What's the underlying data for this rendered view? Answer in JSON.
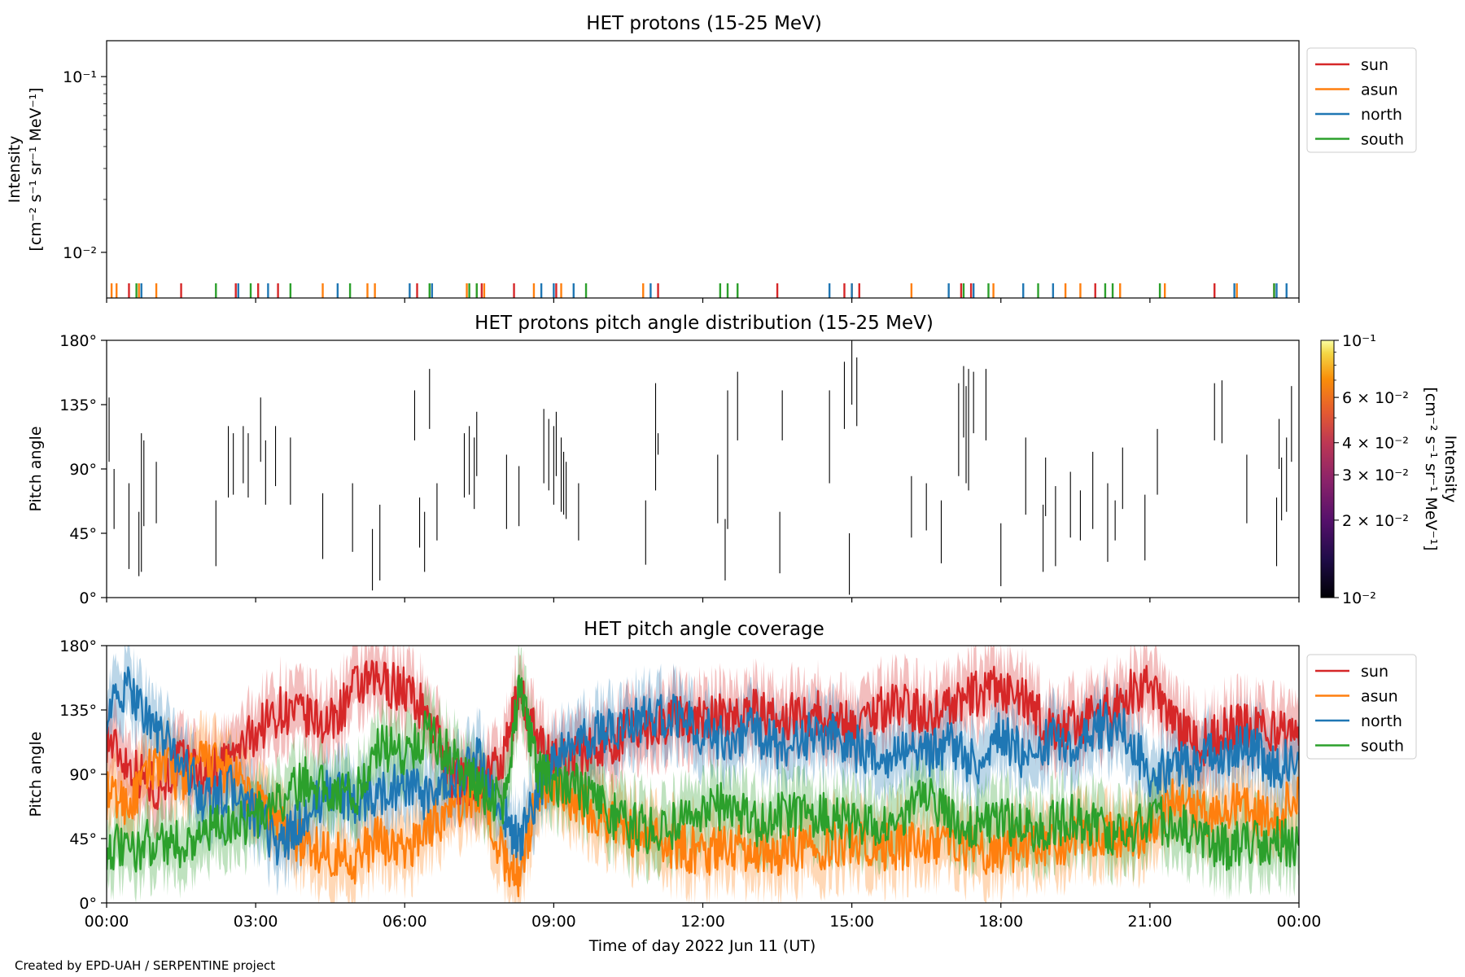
{
  "footer": "Created by EPD-UAH / SERPENTINE project",
  "xaxis": {
    "label": "Time of day 2022 Jun 11 (UT)",
    "ticks": [
      "00:00",
      "03:00",
      "06:00",
      "09:00",
      "12:00",
      "15:00",
      "18:00",
      "21:00",
      "00:00"
    ],
    "range_hours": [
      0,
      24
    ]
  },
  "colors": {
    "sun": "#d62728",
    "asun": "#ff7f0e",
    "north": "#1f77b4",
    "south": "#2ca02c"
  },
  "chart_data": [
    {
      "type": "line",
      "title": "HET protons (15-25 MeV)",
      "ylabel": [
        "Intensity",
        "[cm⁻² s⁻¹ sr⁻¹ MeV⁻¹]"
      ],
      "yscale": "log",
      "ylim": [
        0.0055,
        0.16
      ],
      "yticks": [
        "10⁻¹",
        "10⁻²"
      ],
      "legend": [
        "sun",
        "asun",
        "north",
        "south"
      ],
      "legend_position": "outside-right",
      "series": [
        {
          "name": "sun",
          "spikes_hours": [
            0.45,
            1.5,
            2.6,
            3.05,
            3.45,
            6.25,
            7.55,
            8.2,
            9.05,
            11.1,
            13.5,
            14.85,
            15.15,
            17.2,
            17.4,
            19.9,
            22.3,
            23.5
          ]
        },
        {
          "name": "asun",
          "spikes_hours": [
            0.1,
            0.2,
            0.65,
            1.0,
            4.35,
            5.25,
            5.4,
            6.55,
            7.25,
            7.45,
            7.6,
            8.6,
            9.15,
            10.8,
            15.0,
            16.2,
            17.85,
            19.3,
            19.6,
            20.4,
            21.3,
            22.75
          ]
        },
        {
          "name": "north",
          "spikes_hours": [
            0.7,
            2.65,
            3.25,
            4.65,
            6.1,
            6.55,
            8.75,
            9.0,
            9.4,
            10.95,
            14.55,
            15.0,
            16.95,
            17.45,
            18.45,
            19.05,
            22.7,
            23.55,
            23.75
          ]
        },
        {
          "name": "south",
          "spikes_hours": [
            0.6,
            2.2,
            2.9,
            3.7,
            4.9,
            6.5,
            7.3,
            7.45,
            9.65,
            12.35,
            12.5,
            12.7,
            17.25,
            17.75,
            18.75,
            20.1,
            20.25,
            21.2,
            23.5
          ]
        }
      ]
    },
    {
      "type": "heatmap",
      "title": "HET protons pitch angle distribution (15-25 MeV)",
      "ylabel": "Pitch angle",
      "ylim": [
        0,
        180
      ],
      "yticks": [
        "180°",
        "135°",
        "90°",
        "45°",
        "0°"
      ],
      "colorbar": {
        "label": [
          "Intensity",
          "[cm⁻² s⁻¹ sr⁻¹ MeV⁻¹]"
        ],
        "scale": "log",
        "range": [
          0.01,
          0.1
        ],
        "ticks": [
          "10⁻¹",
          "6 × 10⁻²",
          "4 × 10⁻²",
          "3 × 10⁻²",
          "2 × 10⁻²",
          "10⁻²"
        ],
        "tick_values": [
          0.1,
          0.06,
          0.04,
          0.03,
          0.02,
          0.01
        ]
      },
      "segments": [
        [
          0.05,
          95,
          140
        ],
        [
          0.15,
          48,
          90
        ],
        [
          0.45,
          20,
          80
        ],
        [
          0.65,
          15,
          60
        ],
        [
          0.7,
          18,
          115
        ],
        [
          0.75,
          50,
          110
        ],
        [
          1.0,
          52,
          95
        ],
        [
          2.2,
          22,
          68
        ],
        [
          2.45,
          70,
          120
        ],
        [
          2.55,
          72,
          115
        ],
        [
          2.75,
          80,
          120
        ],
        [
          2.85,
          70,
          115
        ],
        [
          3.1,
          95,
          140
        ],
        [
          3.2,
          65,
          110
        ],
        [
          3.4,
          78,
          120
        ],
        [
          3.7,
          65,
          112
        ],
        [
          4.35,
          27,
          73
        ],
        [
          4.95,
          32,
          80
        ],
        [
          5.35,
          5,
          48
        ],
        [
          5.5,
          12,
          65
        ],
        [
          6.2,
          110,
          145
        ],
        [
          6.3,
          35,
          70
        ],
        [
          6.4,
          18,
          60
        ],
        [
          6.5,
          118,
          160
        ],
        [
          6.65,
          40,
          80
        ],
        [
          7.2,
          70,
          115
        ],
        [
          7.3,
          72,
          120
        ],
        [
          7.4,
          62,
          112
        ],
        [
          7.45,
          85,
          130
        ],
        [
          8.05,
          48,
          100
        ],
        [
          8.3,
          50,
          92
        ],
        [
          8.8,
          80,
          132
        ],
        [
          8.9,
          75,
          125
        ],
        [
          9.0,
          65,
          120
        ],
        [
          9.05,
          85,
          130
        ],
        [
          9.15,
          60,
          112
        ],
        [
          9.2,
          58,
          102
        ],
        [
          9.25,
          55,
          95
        ],
        [
          9.5,
          40,
          80
        ],
        [
          10.85,
          23,
          68
        ],
        [
          11.05,
          75,
          150
        ],
        [
          11.1,
          100,
          115
        ],
        [
          12.3,
          52,
          100
        ],
        [
          12.5,
          48,
          145
        ],
        [
          12.45,
          12,
          55
        ],
        [
          12.7,
          110,
          158
        ],
        [
          13.55,
          17,
          60
        ],
        [
          13.6,
          110,
          145
        ],
        [
          14.55,
          80,
          145
        ],
        [
          14.85,
          118,
          165
        ],
        [
          14.95,
          2,
          45
        ],
        [
          15.0,
          135,
          180
        ],
        [
          15.1,
          120,
          168
        ],
        [
          16.2,
          42,
          85
        ],
        [
          16.5,
          47,
          80
        ],
        [
          16.8,
          24,
          68
        ],
        [
          17.15,
          85,
          150
        ],
        [
          17.25,
          112,
          162
        ],
        [
          17.3,
          80,
          148
        ],
        [
          17.35,
          75,
          160
        ],
        [
          17.45,
          115,
          158
        ],
        [
          17.7,
          110,
          160
        ],
        [
          18.0,
          8,
          52
        ],
        [
          18.5,
          58,
          112
        ],
        [
          18.85,
          18,
          65
        ],
        [
          18.9,
          57,
          98
        ],
        [
          19.1,
          22,
          78
        ],
        [
          19.4,
          42,
          88
        ],
        [
          19.6,
          40,
          75
        ],
        [
          19.85,
          48,
          102
        ],
        [
          20.15,
          25,
          80
        ],
        [
          20.3,
          40,
          68
        ],
        [
          20.45,
          62,
          105
        ],
        [
          20.9,
          26,
          72
        ],
        [
          21.15,
          72,
          118
        ],
        [
          22.3,
          110,
          150
        ],
        [
          22.45,
          108,
          152
        ],
        [
          22.95,
          52,
          100
        ],
        [
          23.55,
          22,
          70
        ],
        [
          23.65,
          54,
          98
        ],
        [
          23.6,
          90,
          125
        ],
        [
          23.75,
          60,
          112
        ],
        [
          23.85,
          95,
          148
        ]
      ]
    },
    {
      "type": "line",
      "title": "HET pitch angle coverage",
      "ylabel": "Pitch angle",
      "ylim": [
        0,
        180
      ],
      "yticks": [
        "180°",
        "135°",
        "90°",
        "45°",
        "0°"
      ],
      "legend": [
        "sun",
        "asun",
        "north",
        "south"
      ],
      "legend_position": "outside-right",
      "band_width_deg": 22,
      "series": [
        {
          "name": "sun",
          "x": [
            0,
            0.5,
            1,
            1.5,
            2,
            2.5,
            3,
            3.5,
            4,
            4.5,
            5,
            5.5,
            6,
            6.5,
            7,
            7.5,
            8,
            8.3,
            8.7,
            9,
            9.5,
            10,
            10.5,
            11,
            11.5,
            12,
            12.5,
            13,
            13.5,
            14,
            14.5,
            15,
            15.5,
            16,
            16.5,
            17,
            17.5,
            18,
            18.5,
            19,
            19.5,
            20,
            20.5,
            21,
            21.5,
            22,
            22.5,
            23,
            23.5,
            24
          ],
          "y": [
            115,
            95,
            80,
            100,
            90,
            100,
            120,
            135,
            130,
            125,
            150,
            155,
            150,
            130,
            85,
            85,
            100,
            150,
            110,
            100,
            105,
            110,
            120,
            125,
            130,
            128,
            130,
            135,
            125,
            135,
            130,
            125,
            135,
            140,
            130,
            140,
            145,
            150,
            140,
            120,
            125,
            130,
            145,
            150,
            125,
            110,
            120,
            125,
            120,
            110
          ]
        },
        {
          "name": "asun",
          "x": [
            0,
            0.5,
            1,
            1.5,
            2,
            2.5,
            3,
            3.5,
            4,
            4.5,
            5,
            5.5,
            6,
            6.5,
            7,
            7.5,
            8,
            8.3,
            8.7,
            9,
            9.5,
            10,
            10.5,
            11,
            11.5,
            12,
            12.5,
            13,
            13.5,
            14,
            14.5,
            15,
            15.5,
            16,
            16.5,
            17,
            17.5,
            18,
            18.5,
            19,
            19.5,
            20,
            20.5,
            21,
            21.5,
            22,
            22.5,
            23,
            23.5,
            24
          ],
          "y": [
            75,
            70,
            100,
            85,
            100,
            90,
            70,
            55,
            40,
            35,
            30,
            45,
            35,
            55,
            65,
            80,
            30,
            20,
            80,
            85,
            70,
            60,
            50,
            45,
            40,
            35,
            40,
            38,
            35,
            40,
            40,
            45,
            38,
            40,
            42,
            45,
            35,
            35,
            40,
            40,
            45,
            50,
            45,
            50,
            75,
            60,
            70,
            65,
            55,
            80
          ]
        },
        {
          "name": "north",
          "x": [
            0,
            0.5,
            1,
            1.5,
            2,
            2.5,
            3,
            3.5,
            4,
            4.5,
            5,
            5.5,
            6,
            6.5,
            7,
            7.5,
            8,
            8.3,
            8.7,
            9,
            9.5,
            10,
            10.5,
            11,
            11.5,
            12,
            12.5,
            13,
            13.5,
            14,
            14.5,
            15,
            15.5,
            16,
            16.5,
            17,
            17.5,
            18,
            18.5,
            19,
            19.5,
            20,
            20.5,
            21,
            21.5,
            22,
            22.5,
            23,
            23.5,
            24
          ],
          "y": [
            135,
            150,
            120,
            100,
            70,
            80,
            60,
            40,
            60,
            80,
            70,
            75,
            85,
            70,
            85,
            100,
            60,
            40,
            80,
            100,
            110,
            120,
            125,
            130,
            130,
            120,
            115,
            120,
            110,
            115,
            120,
            110,
            100,
            110,
            105,
            110,
            95,
            120,
            100,
            115,
            110,
            125,
            120,
            90,
            95,
            100,
            105,
            110,
            95,
            100
          ]
        },
        {
          "name": "south",
          "x": [
            0,
            0.5,
            1,
            1.5,
            2,
            2.5,
            3,
            3.5,
            4,
            4.5,
            5,
            5.5,
            6,
            6.5,
            7,
            7.5,
            8,
            8.3,
            8.7,
            9,
            9.5,
            10,
            10.5,
            11,
            11.5,
            12,
            12.5,
            13,
            13.5,
            14,
            14.5,
            15,
            15.5,
            16,
            16.5,
            17,
            17.5,
            18,
            18.5,
            19,
            19.5,
            20,
            20.5,
            21,
            21.5,
            22,
            22.5,
            23,
            23.5,
            24
          ],
          "y": [
            40,
            35,
            45,
            40,
            50,
            55,
            60,
            70,
            85,
            80,
            75,
            110,
            105,
            120,
            100,
            80,
            70,
            150,
            90,
            85,
            80,
            65,
            55,
            50,
            55,
            60,
            70,
            55,
            60,
            65,
            60,
            55,
            55,
            60,
            75,
            60,
            55,
            60,
            50,
            55,
            60,
            50,
            45,
            60,
            55,
            45,
            40,
            40,
            45,
            40
          ]
        }
      ]
    }
  ]
}
